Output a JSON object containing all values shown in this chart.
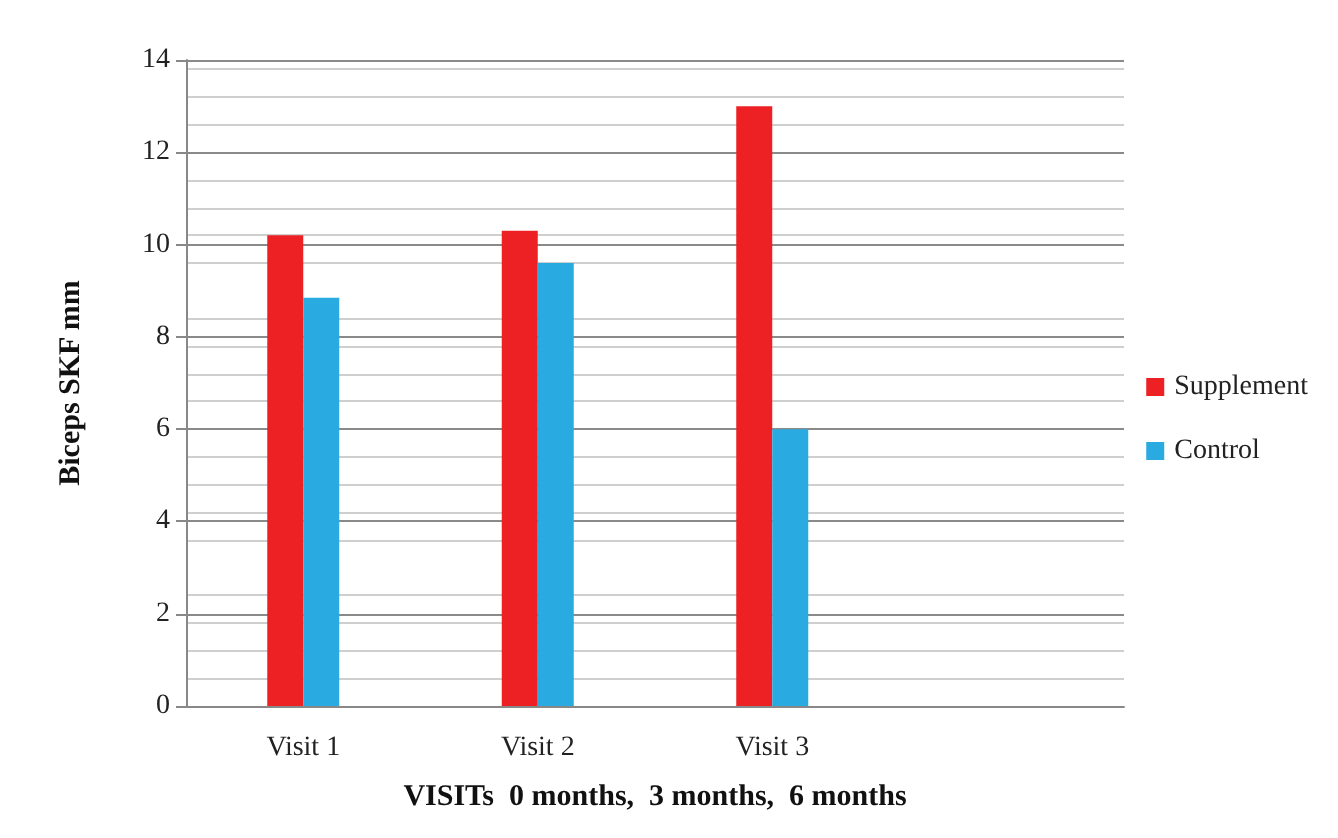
{
  "chart_data": {
    "type": "bar",
    "xlabel": "VISITs  0 months,  3 months,  6 months",
    "ylabel": "Biceps SKF mm",
    "categories": [
      "Visit 1",
      "Visit 2",
      "Visit 3",
      null
    ],
    "series": [
      {
        "name": "Supplement",
        "color": "#ed2024",
        "values": [
          10.2,
          10.3,
          13.0,
          null
        ]
      },
      {
        "name": "Control",
        "color": "#29abe2",
        "values": [
          8.85,
          9.6,
          6.0,
          null
        ]
      }
    ],
    "ylim": [
      0,
      14
    ],
    "yticks": [
      0,
      2,
      4,
      6,
      8,
      10,
      12,
      14
    ],
    "grid": "y",
    "legend": "right"
  }
}
